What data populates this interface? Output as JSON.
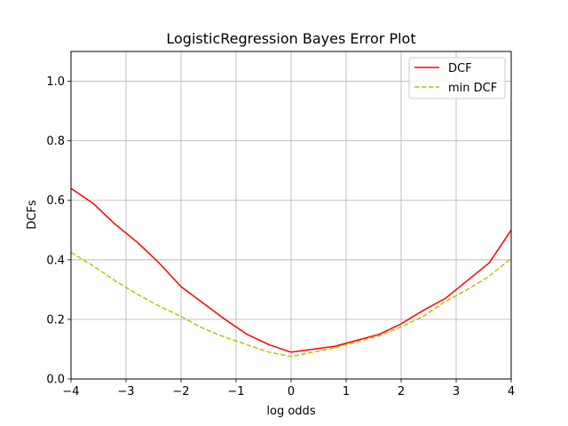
{
  "chart_data": {
    "type": "line",
    "title": "LogisticRegression Bayes Error Plot",
    "xlabel": "log odds",
    "ylabel": "DCFs",
    "xlim": [
      -4,
      4
    ],
    "ylim": [
      0,
      1.1
    ],
    "xticks": [
      "−4",
      "−3",
      "−2",
      "−1",
      "0",
      "1",
      "2",
      "3",
      "4"
    ],
    "xtick_values": [
      -4,
      -3,
      -2,
      -1,
      0,
      1,
      2,
      3,
      4
    ],
    "yticks": [
      "0.0",
      "0.2",
      "0.4",
      "0.6",
      "0.8",
      "1.0"
    ],
    "ytick_values": [
      0,
      0.2,
      0.4,
      0.6,
      0.8,
      1.0
    ],
    "grid": true,
    "legend_position": "top-right",
    "x": [
      -4.0,
      -3.6,
      -3.2,
      -2.8,
      -2.4,
      -2.0,
      -1.6,
      -1.2,
      -0.8,
      -0.4,
      0.0,
      0.4,
      0.8,
      1.2,
      1.6,
      2.0,
      2.4,
      2.8,
      3.2,
      3.6,
      4.0
    ],
    "series": [
      {
        "name": "DCF",
        "color": "#ff0000",
        "style": "solid",
        "values": [
          0.64,
          0.59,
          0.52,
          0.46,
          0.39,
          0.31,
          0.255,
          0.2,
          0.15,
          0.115,
          0.09,
          0.1,
          0.11,
          0.13,
          0.15,
          0.185,
          0.23,
          0.27,
          0.33,
          0.39,
          0.5
        ]
      },
      {
        "name": "min DCF",
        "color": "#bfbf00",
        "style": "dashed",
        "values": [
          0.425,
          0.38,
          0.33,
          0.285,
          0.245,
          0.21,
          0.17,
          0.14,
          0.115,
          0.09,
          0.075,
          0.09,
          0.105,
          0.125,
          0.145,
          0.175,
          0.21,
          0.26,
          0.3,
          0.345,
          0.405
        ]
      }
    ]
  }
}
